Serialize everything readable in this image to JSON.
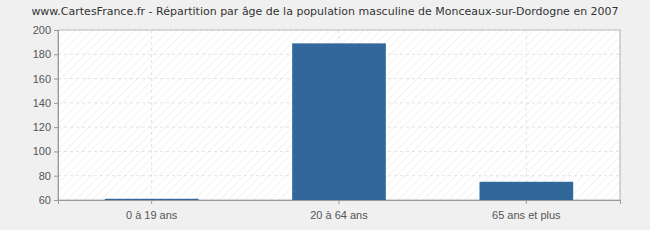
{
  "chart_data": {
    "type": "bar",
    "title": "www.CartesFrance.fr - Répartition par âge de la population masculine de Monceaux-sur-Dordogne en 2007",
    "categories": [
      "0 à 19 ans",
      "20 à 64 ans",
      "65 ans et plus"
    ],
    "values": [
      61,
      189,
      75
    ],
    "color": "#31679a",
    "ylim": [
      60,
      200
    ],
    "yticks": [
      60,
      80,
      100,
      120,
      140,
      160,
      180,
      200
    ],
    "grid": true
  }
}
